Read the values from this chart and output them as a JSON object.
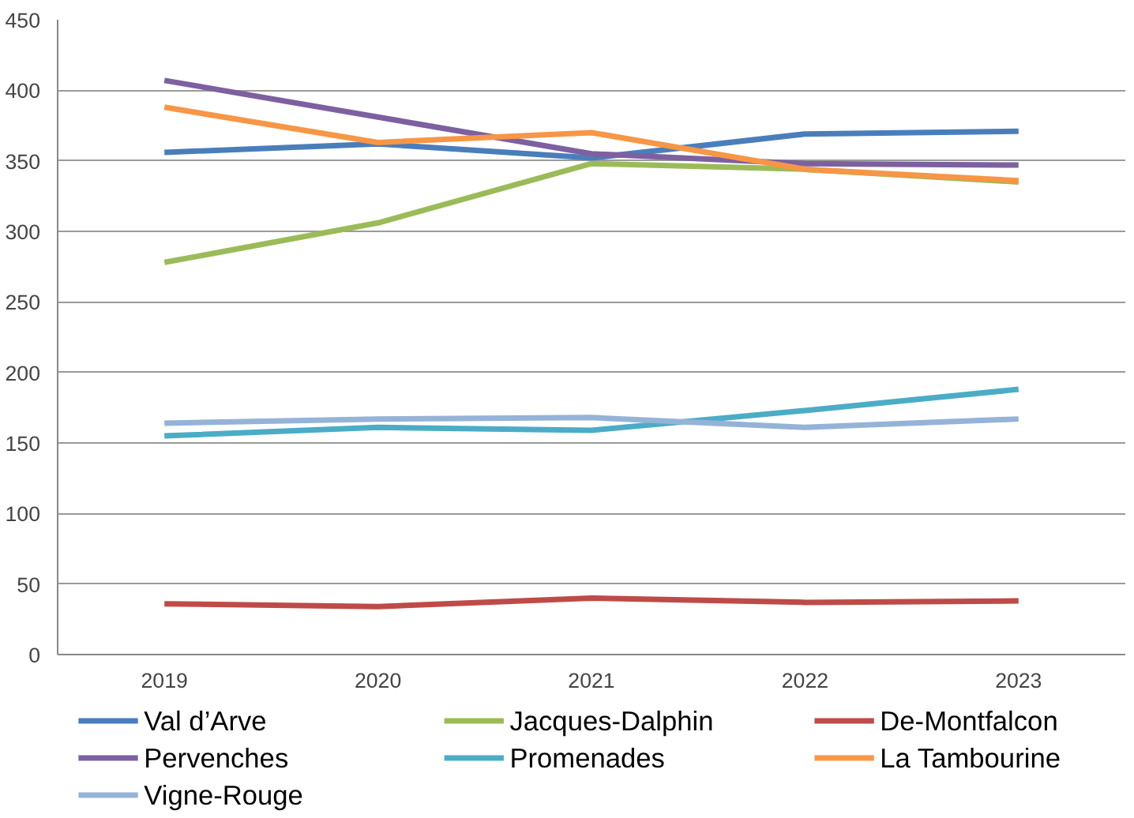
{
  "chart_data": {
    "type": "line",
    "categories": [
      "2019",
      "2020",
      "2021",
      "2022",
      "2023"
    ],
    "series": [
      {
        "name": "Val d’Arve",
        "color": "#4a7ebb",
        "values": [
          356,
          362,
          352,
          369,
          371
        ]
      },
      {
        "name": "Jacques-Dalphin",
        "color": "#9bbb59",
        "values": [
          278,
          306,
          348,
          344,
          335
        ]
      },
      {
        "name": "De-Montfalcon",
        "color": "#be4b48",
        "values": [
          36,
          34,
          40,
          37,
          38
        ]
      },
      {
        "name": "Pervenches",
        "color": "#7d60a0",
        "values": [
          407,
          381,
          355,
          348,
          347
        ]
      },
      {
        "name": "Promenades",
        "color": "#4bacc6",
        "values": [
          155,
          161,
          159,
          173,
          188
        ]
      },
      {
        "name": "La Tambourine",
        "color": "#f79646",
        "values": [
          388,
          363,
          370,
          344,
          336
        ]
      },
      {
        "name": "Vigne-Rouge",
        "color": "#95b3d7",
        "values": [
          164,
          167,
          168,
          161,
          167
        ]
      }
    ],
    "ylim": [
      0,
      450
    ],
    "yticks": [
      0,
      50,
      100,
      150,
      200,
      250,
      300,
      350,
      400,
      450
    ],
    "grid": "y",
    "legend": "bottom",
    "marker": "none",
    "line_style": "solid"
  }
}
